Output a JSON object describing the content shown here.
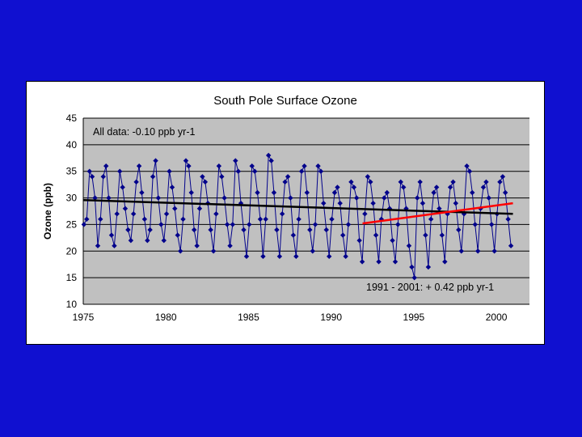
{
  "slide": {
    "background": "#1010d0"
  },
  "chart_data": {
    "type": "line",
    "title": "South Pole Surface Ozone",
    "xlabel": "",
    "ylabel": "Ozone (ppb)",
    "xlim": [
      1975,
      2002
    ],
    "ylim": [
      10,
      45
    ],
    "xticks": [
      1975,
      1980,
      1985,
      1990,
      1995,
      2000
    ],
    "yticks": [
      10,
      15,
      20,
      25,
      30,
      35,
      40,
      45
    ],
    "grid": "horizontal",
    "plot_background": "#c0c0c0",
    "series": [
      {
        "color": "#00008b",
        "marker": "diamond",
        "x": [
          1975.04,
          1975.21,
          1975.38,
          1975.54,
          1975.71,
          1975.88,
          1976.04,
          1976.21,
          1976.38,
          1976.54,
          1976.71,
          1976.88,
          1977.04,
          1977.21,
          1977.38,
          1977.54,
          1977.71,
          1977.88,
          1978.04,
          1978.21,
          1978.38,
          1978.54,
          1978.71,
          1978.88,
          1979.04,
          1979.21,
          1979.38,
          1979.54,
          1979.71,
          1979.88,
          1980.04,
          1980.21,
          1980.38,
          1980.54,
          1980.71,
          1980.88,
          1981.04,
          1981.21,
          1981.38,
          1981.54,
          1981.71,
          1981.88,
          1982.04,
          1982.21,
          1982.38,
          1982.54,
          1982.71,
          1982.88,
          1983.04,
          1983.21,
          1983.38,
          1983.54,
          1983.71,
          1983.88,
          1984.04,
          1984.21,
          1984.38,
          1984.54,
          1984.71,
          1984.88,
          1985.04,
          1985.21,
          1985.38,
          1985.54,
          1985.71,
          1985.88,
          1986.04,
          1986.21,
          1986.38,
          1986.54,
          1986.71,
          1986.88,
          1987.04,
          1987.21,
          1987.38,
          1987.54,
          1987.71,
          1987.88,
          1988.04,
          1988.21,
          1988.38,
          1988.54,
          1988.71,
          1988.88,
          1989.04,
          1989.21,
          1989.38,
          1989.54,
          1989.71,
          1989.88,
          1990.04,
          1990.21,
          1990.38,
          1990.54,
          1990.71,
          1990.88,
          1991.04,
          1991.21,
          1991.38,
          1991.54,
          1991.71,
          1991.88,
          1992.04,
          1992.21,
          1992.38,
          1992.54,
          1992.71,
          1992.88,
          1993.04,
          1993.21,
          1993.38,
          1993.54,
          1993.71,
          1993.88,
          1994.04,
          1994.21,
          1994.38,
          1994.54,
          1994.71,
          1994.88,
          1995.04,
          1995.21,
          1995.38,
          1995.54,
          1995.71,
          1995.88,
          1996.04,
          1996.21,
          1996.38,
          1996.54,
          1996.71,
          1996.88,
          1997.04,
          1997.21,
          1997.38,
          1997.54,
          1997.71,
          1997.88,
          1998.04,
          1998.21,
          1998.38,
          1998.54,
          1998.71,
          1998.88,
          1999.04,
          1999.21,
          1999.38,
          1999.54,
          1999.71,
          1999.88,
          2000.04,
          2000.21,
          2000.38,
          2000.54,
          2000.71,
          2000.88
        ],
        "y": [
          25,
          26,
          35,
          34,
          30,
          21,
          26,
          34,
          36,
          30,
          23,
          21,
          27,
          35,
          32,
          28,
          24,
          22,
          27,
          33,
          36,
          31,
          26,
          22,
          24,
          34,
          37,
          30,
          25,
          22,
          27,
          35,
          32,
          28,
          23,
          20,
          26,
          37,
          36,
          31,
          24,
          21,
          28,
          34,
          33,
          29,
          24,
          20,
          27,
          36,
          34,
          30,
          25,
          21,
          25,
          37,
          35,
          29,
          24,
          19,
          25,
          36,
          35,
          31,
          26,
          19,
          26,
          38,
          37,
          31,
          24,
          19,
          27,
          33,
          34,
          30,
          23,
          19,
          26,
          35,
          36,
          31,
          24,
          20,
          25,
          36,
          35,
          29,
          24,
          19,
          26,
          31,
          32,
          29,
          23,
          19,
          25,
          33,
          32,
          30,
          22,
          18,
          27,
          34,
          33,
          29,
          23,
          18,
          26,
          30,
          31,
          28,
          22,
          18,
          25,
          33,
          32,
          28,
          21,
          17,
          15,
          30,
          33,
          29,
          23,
          17,
          26,
          31,
          32,
          28,
          23,
          18,
          27,
          32,
          33,
          29,
          24,
          20,
          27,
          36,
          35,
          31,
          25,
          20,
          28,
          32,
          33,
          30,
          25,
          20,
          27,
          33,
          34,
          31,
          26,
          21
        ]
      },
      {
        "color": "#000000",
        "trend": "All data",
        "x": [
          1975,
          2001
        ],
        "y": [
          29.6,
          27.0
        ]
      },
      {
        "color": "#ff0000",
        "trend": "1991 - 2001",
        "x": [
          1991.9,
          2001
        ],
        "y": [
          25.2,
          29.0
        ]
      }
    ],
    "annotations": [
      {
        "text": "All data: -0.10 ppb yr-1"
      },
      {
        "text": "1991 - 2001: + 0.42 ppb yr-1"
      }
    ]
  }
}
